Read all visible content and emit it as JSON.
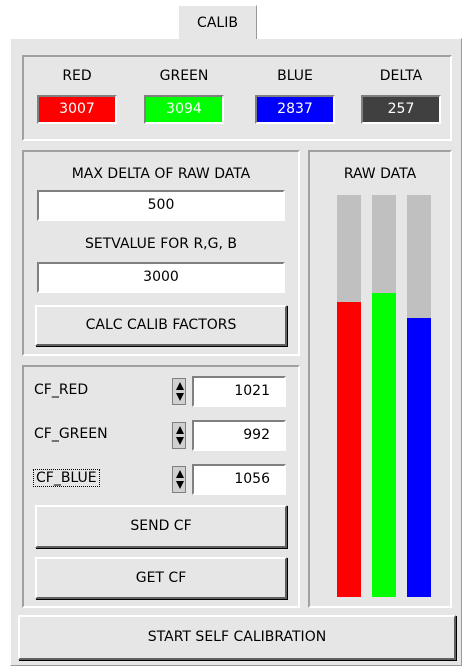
{
  "tab": "CALIB",
  "colors": [
    {
      "label": "RED",
      "value": 3007,
      "color": "#ff0000"
    },
    {
      "label": "GREEN",
      "value": 3094,
      "color": "#00ff00"
    },
    {
      "label": "BLUE",
      "value": 2837,
      "color": "#0000ff"
    },
    {
      "label": "DELTA",
      "value": 257,
      "color": "#404040"
    }
  ],
  "max_delta": {
    "label": "MAX DELTA OF RAW DATA",
    "value": 500
  },
  "setvalue": {
    "label": "SETVALUE FOR R,G, B",
    "value": 3000
  },
  "buttons": {
    "calc": "CALC CALIB FACTORS",
    "send": "SEND CF",
    "get": "GET CF",
    "start": "START SELF CALIBRATION"
  },
  "raw_data": {
    "title": "RAW DATA",
    "range": [
      0,
      4095
    ]
  },
  "cf": [
    {
      "label": "CF_RED",
      "value": 1021
    },
    {
      "label": "CF_GREEN",
      "value": 992
    },
    {
      "label": "CF_BLUE",
      "value": 1056
    }
  ]
}
